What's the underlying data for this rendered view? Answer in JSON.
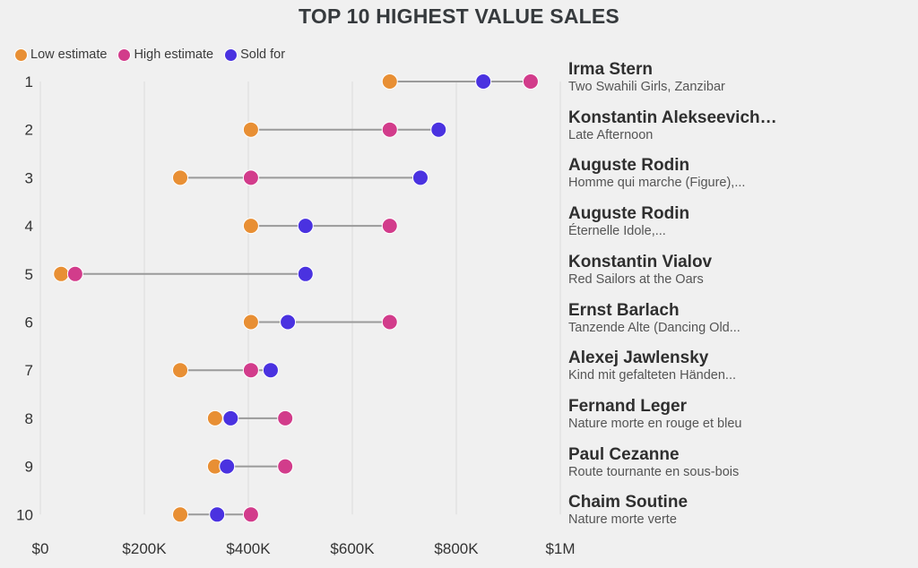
{
  "chart_data": {
    "type": "dumbbell",
    "title": "TOP 10 HIGHEST VALUE SALES",
    "xlabel": "",
    "ylabel": "",
    "xlim": [
      0,
      1000000
    ],
    "grid": true,
    "legend_position": "top-left",
    "x_ticks": [
      "$0",
      "$200K",
      "$400K",
      "$600K",
      "$800K",
      "$1M"
    ],
    "x_tick_values": [
      0,
      200000,
      400000,
      600000,
      800000,
      1000000
    ],
    "series": [
      {
        "key": "low",
        "name": "Low estimate",
        "color": "#e88f34"
      },
      {
        "key": "high",
        "name": "High estimate",
        "color": "#d23c8b"
      },
      {
        "key": "sold",
        "name": "Sold for",
        "color": "#4a32e0"
      }
    ],
    "rows": [
      {
        "rank": "1",
        "artist": "Irma Stern",
        "work": "Two Swahili Girls, Zanzibar",
        "low": 672000,
        "high": 943000,
        "sold": 852000
      },
      {
        "rank": "2",
        "artist": "Konstantin Alekseevich…",
        "work": "Late Afternoon",
        "low": 405000,
        "high": 672000,
        "sold": 766000
      },
      {
        "rank": "3",
        "artist": "Auguste Rodin",
        "work": "Homme qui marche (Figure),...",
        "low": 269000,
        "high": 405000,
        "sold": 731000
      },
      {
        "rank": "4",
        "artist": "Auguste Rodin",
        "work": "Éternelle Idole,...",
        "low": 405000,
        "high": 672000,
        "sold": 510000
      },
      {
        "rank": "5",
        "artist": "Konstantin Vialov",
        "work": "Red Sailors at the Oars",
        "low": 40000,
        "high": 67000,
        "sold": 510000
      },
      {
        "rank": "6",
        "artist": "Ernst Barlach",
        "work": "Tanzende Alte (Dancing Old...",
        "low": 405000,
        "high": 672000,
        "sold": 476000
      },
      {
        "rank": "7",
        "artist": "Alexej Jawlensky",
        "work": "Kind mit gefalteten Händen...",
        "low": 269000,
        "high": 405000,
        "sold": 443000
      },
      {
        "rank": "8",
        "artist": "Fernand Leger",
        "work": "Nature morte en rouge et bleu",
        "low": 336000,
        "high": 471000,
        "sold": 366000
      },
      {
        "rank": "9",
        "artist": "Paul Cezanne",
        "work": "Route tournante en sous-bois",
        "low": 336000,
        "high": 471000,
        "sold": 359000
      },
      {
        "rank": "10",
        "artist": "Chaim Soutine",
        "work": "Nature morte verte",
        "low": 269000,
        "high": 405000,
        "sold": 340000
      }
    ]
  }
}
